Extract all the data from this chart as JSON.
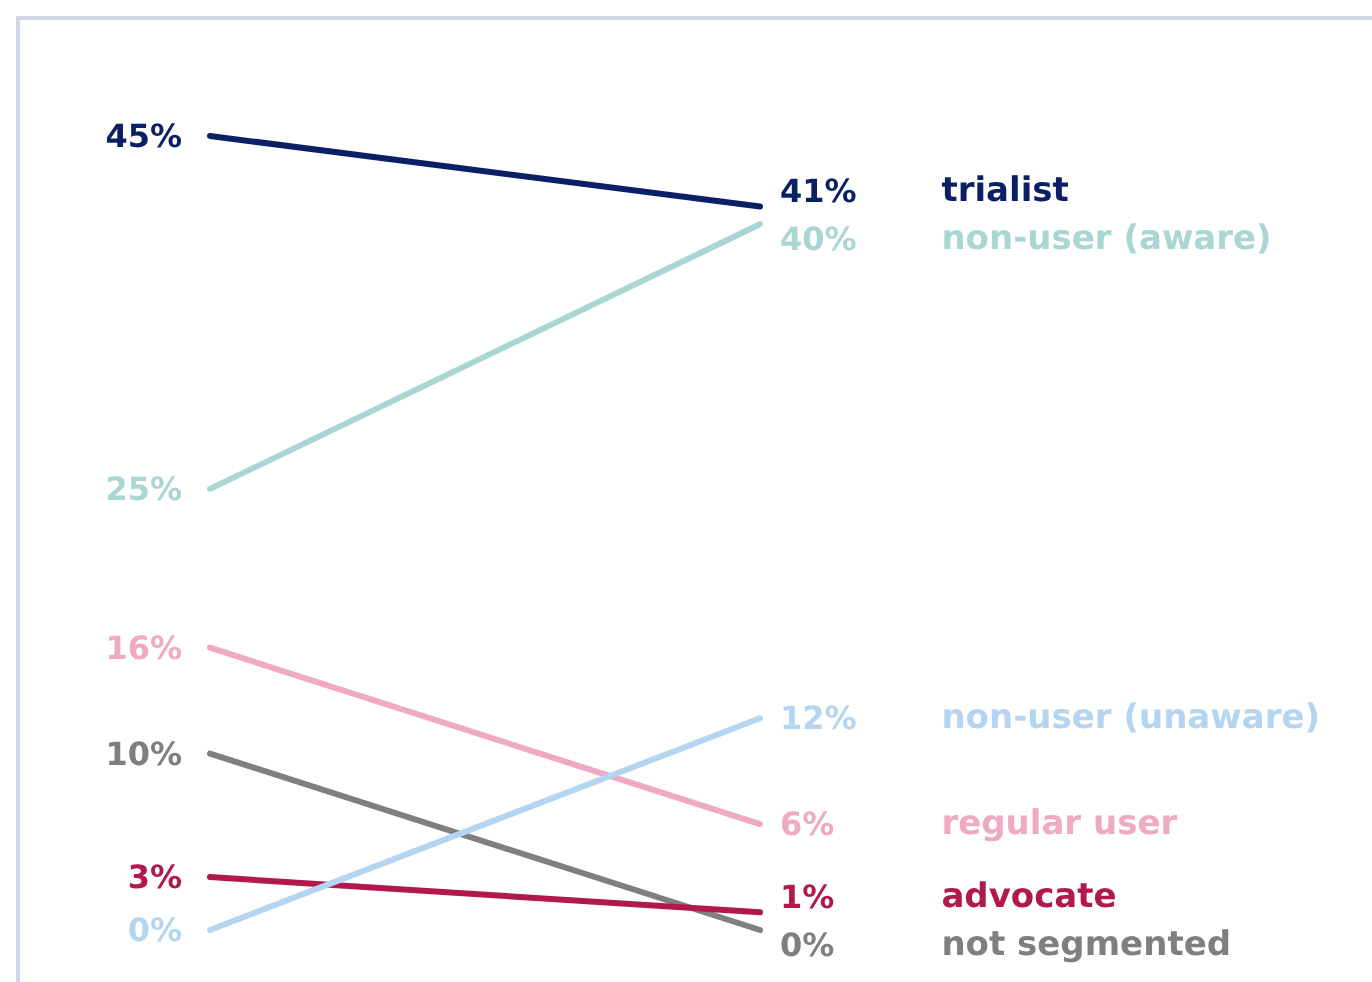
{
  "chart_data": {
    "type": "line",
    "categories": [
      null,
      null
    ],
    "grid": false,
    "legend": false,
    "marker": "none",
    "line_style": "solid",
    "series": [
      {
        "name": "trialist",
        "color": "#0b1f66",
        "values": [
          45,
          41
        ],
        "value_labels": [
          "45%",
          "41%"
        ]
      },
      {
        "name": "non-user (aware)",
        "color": "#a9d6d2",
        "values": [
          25,
          40
        ],
        "value_labels": [
          "25%",
          "40%"
        ]
      },
      {
        "name": "regular user",
        "color": "#f0a9c2",
        "values": [
          16,
          6
        ],
        "value_labels": [
          "16%",
          "6%"
        ]
      },
      {
        "name": "not segmented",
        "color": "#7f7f7f",
        "values": [
          10,
          0
        ],
        "value_labels": [
          "10%",
          "0%"
        ]
      },
      {
        "name": "advocate",
        "color": "#b1184b",
        "values": [
          3,
          1
        ],
        "value_labels": [
          "3%",
          "1%"
        ]
      },
      {
        "name": "non-user (unaware)",
        "color": "#b4d5f1",
        "values": [
          0,
          12
        ],
        "value_labels": [
          "0%",
          "12%"
        ]
      }
    ]
  }
}
